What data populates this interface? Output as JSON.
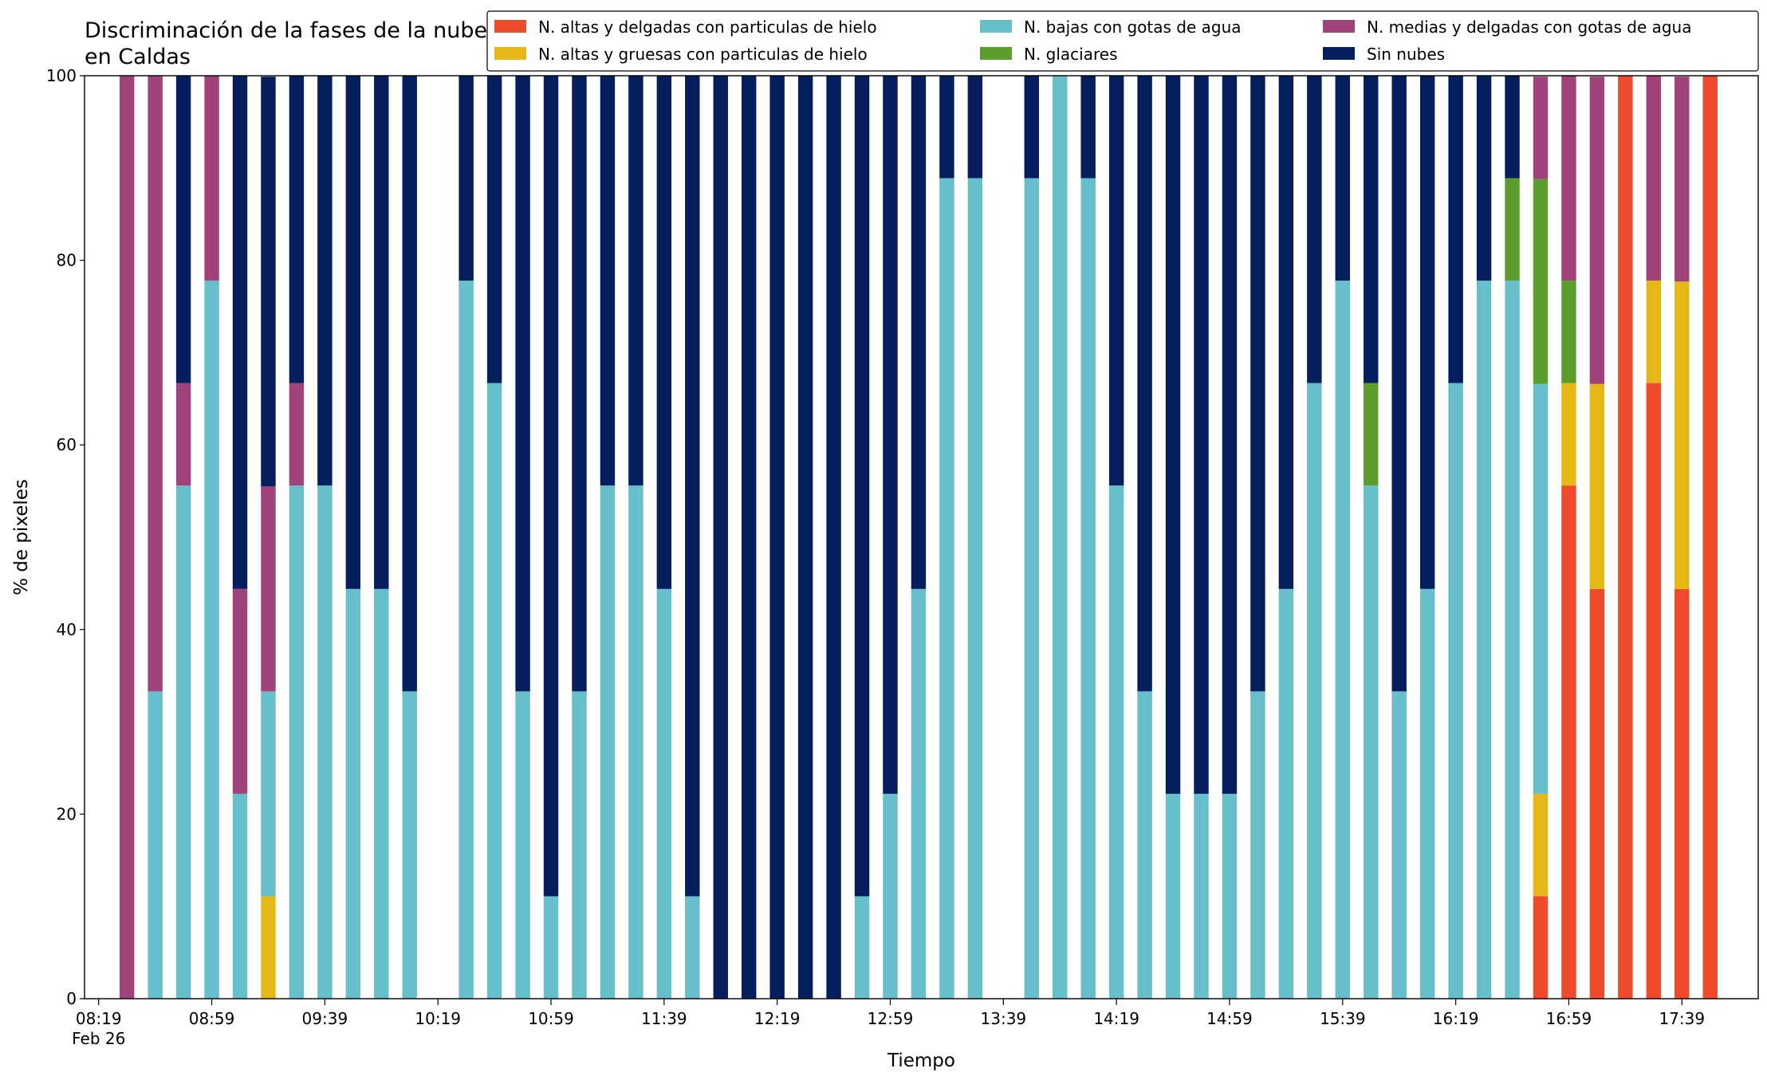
{
  "chart_data": {
    "type": "stacked_bar",
    "title": "Discriminación de la fases de la nube en Caldas",
    "xlabel": "Tiempo",
    "ylabel": "% de pixeles",
    "x": [
      "08:29",
      "08:39",
      "08:49",
      "08:59",
      "09:09",
      "09:19",
      "09:29",
      "09:39",
      "09:49",
      "09:59",
      "10:09",
      "10:29",
      "10:39",
      "10:49",
      "10:59",
      "11:09",
      "11:19",
      "11:29",
      "11:39",
      "11:49",
      "11:59",
      "12:09",
      "12:19",
      "12:29",
      "12:39",
      "12:49",
      "12:59",
      "13:09",
      "13:19",
      "13:29",
      "13:49",
      "13:59",
      "14:09",
      "14:19",
      "14:29",
      "14:39",
      "14:49",
      "14:59",
      "15:09",
      "15:19",
      "15:29",
      "15:39",
      "15:49",
      "15:59",
      "16:09",
      "16:19",
      "16:29",
      "16:39",
      "16:49",
      "16:59",
      "17:09",
      "17:19",
      "17:29",
      "17:39",
      "17:49"
    ],
    "series": [
      {
        "name": "N. altas y delgadas con particulas de hielo",
        "color": "#ee4a2b",
        "values": [
          0,
          0,
          0,
          0,
          0,
          0,
          0,
          0,
          0,
          0,
          0,
          0,
          0,
          0,
          0,
          0,
          0,
          0,
          0,
          0,
          0,
          0,
          0,
          0,
          0,
          0,
          0,
          0,
          0,
          0,
          0,
          0,
          0,
          0,
          0,
          0,
          0,
          0,
          0,
          0,
          0,
          0,
          0,
          0,
          0,
          0,
          0,
          0,
          11.1,
          55.6,
          44.4,
          100,
          66.7,
          44.4,
          100
        ]
      },
      {
        "name": "N. altas y gruesas con particulas de hielo",
        "color": "#e5b817",
        "values": [
          0,
          0,
          0,
          0,
          0,
          11.1,
          0,
          0,
          0,
          0,
          0,
          0,
          0,
          0,
          0,
          0,
          0,
          0,
          0,
          0,
          0,
          0,
          0,
          0,
          0,
          0,
          0,
          0,
          0,
          0,
          0,
          0,
          0,
          0,
          0,
          0,
          0,
          0,
          0,
          0,
          0,
          0,
          0,
          0,
          0,
          0,
          0,
          0,
          11.1,
          11.1,
          22.2,
          0,
          11.1,
          33.3,
          0
        ]
      },
      {
        "name": "N. bajas con gotas de agua",
        "color": "#66bfcb",
        "values": [
          0,
          33.3,
          55.6,
          77.8,
          22.2,
          22.2,
          55.6,
          55.6,
          44.4,
          44.4,
          33.3,
          77.8,
          66.7,
          33.3,
          11.1,
          33.3,
          55.6,
          55.6,
          44.4,
          11.1,
          0,
          0,
          0,
          0,
          0,
          11.1,
          22.2,
          44.4,
          88.9,
          88.9,
          88.9,
          100,
          88.9,
          55.6,
          33.3,
          22.2,
          22.2,
          22.2,
          33.3,
          44.4,
          66.7,
          77.8,
          55.6,
          33.3,
          44.4,
          66.7,
          77.8,
          77.8,
          44.4,
          0,
          0,
          0,
          0,
          0,
          0
        ]
      },
      {
        "name": "N. glaciares",
        "color": "#5c9e2e",
        "values": [
          0,
          0,
          0,
          0,
          0,
          0,
          0,
          0,
          0,
          0,
          0,
          0,
          0,
          0,
          0,
          0,
          0,
          0,
          0,
          0,
          0,
          0,
          0,
          0,
          0,
          0,
          0,
          0,
          0,
          0,
          0,
          0,
          0,
          0,
          0,
          0,
          0,
          0,
          0,
          0,
          0,
          0,
          11.1,
          0,
          0,
          0,
          0,
          11.1,
          22.2,
          11.1,
          0,
          0,
          0,
          0,
          0
        ]
      },
      {
        "name": "N. medias y delgadas con gotas de agua",
        "color": "#a0437a",
        "values": [
          100,
          66.7,
          11.1,
          22.2,
          22.2,
          22.2,
          11.1,
          0,
          0,
          0,
          0,
          0,
          0,
          0,
          0,
          0,
          0,
          0,
          0,
          0,
          0,
          0,
          0,
          0,
          0,
          0,
          0,
          0,
          0,
          0,
          0,
          0,
          0,
          0,
          0,
          0,
          0,
          0,
          0,
          0,
          0,
          0,
          0,
          0,
          0,
          0,
          0,
          0,
          11.1,
          22.2,
          33.3,
          0,
          22.2,
          22.2,
          0
        ]
      },
      {
        "name": "Sin nubes",
        "color": "#041e5e",
        "values": [
          0,
          0,
          33.3,
          0,
          55.6,
          44.4,
          33.3,
          44.4,
          55.6,
          55.6,
          66.7,
          22.2,
          33.3,
          66.7,
          88.9,
          66.7,
          44.4,
          44.4,
          55.6,
          88.9,
          100,
          100,
          100,
          100,
          100,
          88.9,
          77.8,
          55.6,
          11.1,
          11.1,
          11.1,
          0,
          11.1,
          44.4,
          66.7,
          77.8,
          77.8,
          77.8,
          66.7,
          55.6,
          33.3,
          22.2,
          33.3,
          66.7,
          55.6,
          33.3,
          22.2,
          11.1,
          0,
          0,
          0,
          0,
          0,
          0,
          0
        ]
      }
    ],
    "xlim": [
      "08:14",
      "18:06"
    ],
    "xticks": [
      "08:19",
      "08:59",
      "09:39",
      "10:19",
      "10:59",
      "11:39",
      "12:19",
      "12:59",
      "13:39",
      "14:19",
      "14:59",
      "15:39",
      "16:19",
      "16:59",
      "17:39"
    ],
    "x_date_label": "Feb 26",
    "ylim": [
      0,
      100
    ],
    "yticks": [
      0,
      20,
      40,
      60,
      80,
      100
    ],
    "legend": "top right"
  }
}
